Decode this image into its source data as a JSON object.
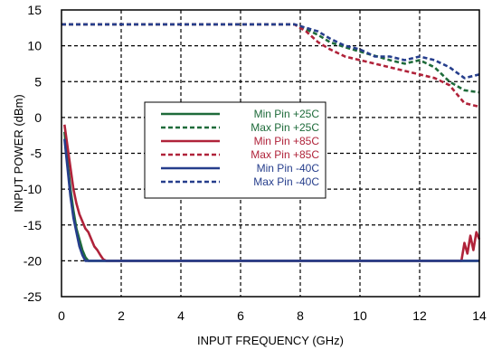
{
  "chart_data": {
    "type": "line",
    "title": "",
    "xlabel": "INPUT FREQUENCY (GHz)",
    "ylabel": "INPUT POWER (dBm)",
    "xlim": [
      0,
      14
    ],
    "ylim": [
      -25,
      15
    ],
    "xticks": [
      0,
      2,
      4,
      6,
      8,
      10,
      12,
      14
    ],
    "yticks": [
      -25,
      -20,
      -15,
      -10,
      -5,
      0,
      5,
      10,
      15
    ],
    "grid": true,
    "legend_position": "center",
    "series": [
      {
        "name": "Min Pin +25C",
        "color": "#1e6b3a",
        "dash": "solid",
        "x": [
          0.1,
          0.2,
          0.3,
          0.4,
          0.5,
          0.6,
          0.7,
          0.8,
          0.9,
          1.0,
          14.0
        ],
        "y": [
          -2,
          -6,
          -10,
          -13,
          -15.5,
          -17,
          -18.5,
          -19.5,
          -20,
          -20,
          -20
        ]
      },
      {
        "name": "Max Pin +25C",
        "color": "#1e6b3a",
        "dash": "dashed",
        "x": [
          0,
          7.5,
          7.8,
          8.2,
          8.6,
          9.0,
          9.5,
          10.0,
          10.5,
          11.0,
          11.5,
          12.0,
          12.5,
          13.0,
          13.5,
          14.0
        ],
        "y": [
          13,
          13,
          13,
          12.3,
          11.5,
          10.5,
          9.8,
          9.2,
          8.6,
          8.0,
          7.5,
          8.0,
          7.0,
          5.0,
          3.8,
          3.5
        ]
      },
      {
        "name": "Min Pin +85C",
        "color": "#b0233a",
        "dash": "solid",
        "x": [
          0.1,
          0.2,
          0.3,
          0.4,
          0.5,
          0.6,
          0.7,
          0.8,
          0.9,
          1.0,
          1.1,
          1.2,
          1.3,
          1.4,
          1.5,
          13.4,
          13.5,
          13.6,
          13.7,
          13.8,
          13.9,
          14.0
        ],
        "y": [
          -1,
          -4,
          -7,
          -10,
          -12,
          -13.5,
          -14.5,
          -15.5,
          -16,
          -17,
          -18,
          -18.5,
          -19.2,
          -19.8,
          -20,
          -20,
          -17.5,
          -19,
          -16.5,
          -18.5,
          -16,
          -17
        ]
      },
      {
        "name": "Max Pin +85C",
        "color": "#b0233a",
        "dash": "dashed",
        "x": [
          0,
          7.8,
          8.2,
          8.6,
          9.0,
          9.5,
          10.0,
          10.5,
          11.0,
          11.5,
          12.0,
          12.5,
          13.0,
          13.5,
          14.0
        ],
        "y": [
          13,
          13,
          12,
          10.5,
          9.5,
          8.5,
          8.0,
          7.5,
          7.0,
          6.5,
          6.0,
          5.5,
          4.5,
          2.0,
          1.5
        ]
      },
      {
        "name": "Min Pin -40C",
        "color": "#263e8c",
        "dash": "solid",
        "x": [
          0.1,
          0.2,
          0.3,
          0.4,
          0.5,
          0.6,
          0.7,
          0.8,
          0.9,
          14.0
        ],
        "y": [
          -3,
          -7,
          -11,
          -14,
          -16,
          -18,
          -19.2,
          -20,
          -20,
          -20
        ]
      },
      {
        "name": "Max Pin -40C",
        "color": "#263e8c",
        "dash": "dashed",
        "x": [
          0,
          7.8,
          8.2,
          8.6,
          9.0,
          9.5,
          10.0,
          10.5,
          11.0,
          11.5,
          12.0,
          12.5,
          13.0,
          13.5,
          14.0
        ],
        "y": [
          13,
          13,
          12.5,
          12,
          11,
          10,
          9.5,
          8.5,
          8.5,
          8.0,
          8.5,
          8.0,
          7.0,
          5.5,
          6.0
        ]
      }
    ]
  }
}
